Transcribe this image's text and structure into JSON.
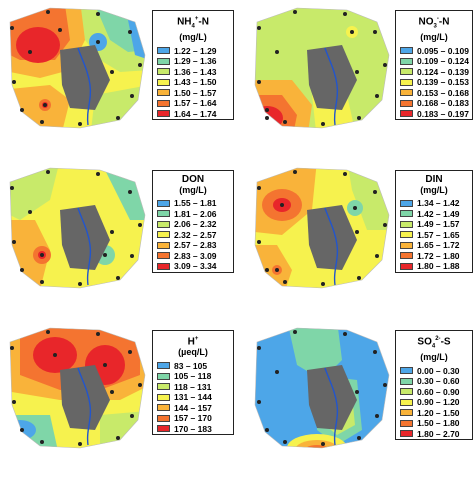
{
  "panels": [
    {
      "title": "NH4+-N",
      "title_main": "NH",
      "title_sub": "4",
      "title_sup": "+",
      "title_tail": "-N",
      "unit": "(mg/L)",
      "legend": [
        {
          "range": "1.22 – 1.29",
          "color": "#4da6e8"
        },
        {
          "range": "1.29 – 1.36",
          "color": "#7fd6a8"
        },
        {
          "range": "1.36 – 1.43",
          "color": "#c8ea6a"
        },
        {
          "range": "1.43 – 1.50",
          "color": "#f6f24e"
        },
        {
          "range": "1.50 – 1.57",
          "color": "#f9b33a"
        },
        {
          "range": "1.57 – 1.64",
          "color": "#f47430"
        },
        {
          "range": "1.64 – 1.74",
          "color": "#e8262a"
        }
      ]
    },
    {
      "title": "NO3--N",
      "title_main": "NO",
      "title_sub": "3",
      "title_sup": "-",
      "title_tail": "-N",
      "unit": "(mg/L)",
      "legend": [
        {
          "range": "0.095 – 0.109",
          "color": "#4da6e8"
        },
        {
          "range": "0.109 – 0.124",
          "color": "#7fd6a8"
        },
        {
          "range": "0.124 – 0.139",
          "color": "#c8ea6a"
        },
        {
          "range": "0.139 – 0.153",
          "color": "#f6f24e"
        },
        {
          "range": "0.153 – 0.168",
          "color": "#f9b33a"
        },
        {
          "range": "0.168 – 0.183",
          "color": "#f47430"
        },
        {
          "range": "0.183 – 0.197",
          "color": "#e8262a"
        }
      ]
    },
    {
      "title": "DON",
      "title_main": "DON",
      "title_sub": "",
      "title_sup": "",
      "title_tail": "",
      "unit": "(mg/L)",
      "legend": [
        {
          "range": "1.55 – 1.81",
          "color": "#4da6e8"
        },
        {
          "range": "1.81 – 2.06",
          "color": "#7fd6a8"
        },
        {
          "range": "2.06 – 2.32",
          "color": "#c8ea6a"
        },
        {
          "range": "2.32 – 2.57",
          "color": "#f6f24e"
        },
        {
          "range": "2.57 – 2.83",
          "color": "#f9b33a"
        },
        {
          "range": "2.83 – 3.09",
          "color": "#f47430"
        },
        {
          "range": "3.09 – 3.34",
          "color": "#e8262a"
        }
      ]
    },
    {
      "title": "DIN",
      "title_main": "DIN",
      "title_sub": "",
      "title_sup": "",
      "title_tail": "",
      "unit": "(mg/L)",
      "legend": [
        {
          "range": "1.34 – 1.42",
          "color": "#4da6e8"
        },
        {
          "range": "1.42 – 1.49",
          "color": "#7fd6a8"
        },
        {
          "range": "1.49 – 1.57",
          "color": "#c8ea6a"
        },
        {
          "range": "1.57 – 1.65",
          "color": "#f6f24e"
        },
        {
          "range": "1.65 – 1.72",
          "color": "#f9b33a"
        },
        {
          "range": "1.72 – 1.80",
          "color": "#f47430"
        },
        {
          "range": "1.80 – 1.88",
          "color": "#e8262a"
        }
      ]
    },
    {
      "title": "H+",
      "title_main": "H",
      "title_sub": "",
      "title_sup": "+",
      "title_tail": "",
      "unit": "(µeq/L)",
      "legend": [
        {
          "range": "83 – 105",
          "color": "#4da6e8"
        },
        {
          "range": "105 – 118",
          "color": "#7fd6a8"
        },
        {
          "range": "118 – 131",
          "color": "#c8ea6a"
        },
        {
          "range": "131 – 144",
          "color": "#f6f24e"
        },
        {
          "range": "144 – 157",
          "color": "#f9b33a"
        },
        {
          "range": "157 – 170",
          "color": "#f47430"
        },
        {
          "range": "170 – 183",
          "color": "#e8262a"
        }
      ]
    },
    {
      "title": "SO42--S",
      "title_main": "SO",
      "title_sub": "4",
      "title_sup": "2-",
      "title_tail": "-S",
      "unit": "(mg/L)",
      "legend": [
        {
          "range": "0.00 – 0.30",
          "color": "#4da6e8"
        },
        {
          "range": "0.30 – 0.60",
          "color": "#7fd6a8"
        },
        {
          "range": "0.60 – 0.90",
          "color": "#c8ea6a"
        },
        {
          "range": "0.90 – 1.20",
          "color": "#f6f24e"
        },
        {
          "range": "1.20 – 1.50",
          "color": "#f9b33a"
        },
        {
          "range": "1.50 – 1.80",
          "color": "#f47430"
        },
        {
          "range": "1.80 – 2.70",
          "color": "#e8262a"
        }
      ]
    }
  ]
}
